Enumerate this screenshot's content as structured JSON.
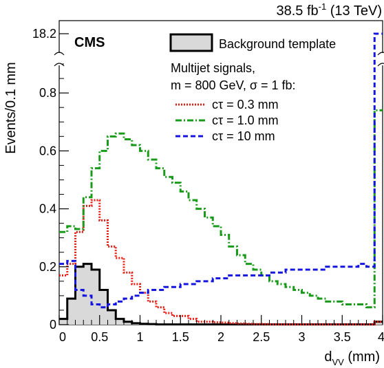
{
  "header": {
    "lumi_value": "38.5 fb",
    "lumi_exp": "-1",
    "lumi_energy": " (13 TeV)",
    "experiment": "CMS"
  },
  "legend": {
    "background": "Background template",
    "heading1": "Multijet signals,",
    "heading2": "m = 800 GeV, σ = 1 fb:",
    "sig1": "cτ = 0.3 mm",
    "sig2": "cτ = 1.0 mm",
    "sig3": "cτ = 10 mm"
  },
  "axes": {
    "ylabel": "Events/0.1 mm",
    "xlabel_main": "d",
    "xlabel_sub": "VV",
    "xlabel_unit": " (mm)"
  },
  "chart_data": {
    "type": "histogram",
    "bin_width": 0.1,
    "xlim": [
      0,
      4
    ],
    "ylim": [
      0,
      0.95
    ],
    "y_break_label": "18.2",
    "x_ticks": [
      "0",
      "0.5",
      "1",
      "1.5",
      "2",
      "2.5",
      "3",
      "3.5",
      "4"
    ],
    "y_ticks": [
      "0",
      "0.2",
      "0.4",
      "0.6",
      "0.8"
    ],
    "colors": {
      "background": "#000000",
      "background_fill": "#d9d9d9",
      "sig_0p3mm": "#e8180f",
      "sig_1mm": "#1a9a1a",
      "sig_10mm": "#1515e0"
    },
    "series": [
      {
        "name": "Background template",
        "style": "solid-filled",
        "values": [
          0.02,
          0.09,
          0.2,
          0.21,
          0.19,
          0.12,
          0.05,
          0.02,
          0.01,
          0.005,
          0.003,
          0.002,
          0.001,
          0.001,
          0.001,
          0.001,
          0.001,
          0.001,
          0.001,
          0.001,
          0.001,
          0.001,
          0.001,
          0.001,
          0.001,
          0.001,
          0.001,
          0.001,
          0.001,
          0.001,
          0.001,
          0.001,
          0.001,
          0.001,
          0.001,
          0.001,
          0.001,
          0.001,
          0.001,
          0.001
        ],
        "last_bin_value": 0.01
      },
      {
        "name": "cτ = 0.3 mm",
        "style": "dotted",
        "values": [
          0.17,
          0.21,
          0.32,
          0.41,
          0.43,
          0.36,
          0.27,
          0.23,
          0.18,
          0.14,
          0.11,
          0.08,
          0.06,
          0.04,
          0.03,
          0.03,
          0.02,
          0.01,
          0.01,
          0.008,
          0.007,
          0.005,
          0.004,
          0.003,
          0.002,
          0.002,
          0.001,
          0.001,
          0.001,
          0.001,
          0.001,
          0.001,
          0.001,
          0.001,
          0.001,
          0.001,
          0.001,
          0.001,
          0.001,
          0.001
        ],
        "last_bin_value": 0.01
      },
      {
        "name": "cτ = 1.0 mm",
        "style": "dash-dot",
        "values": [
          0.32,
          0.34,
          0.33,
          0.44,
          0.54,
          0.6,
          0.65,
          0.66,
          0.64,
          0.62,
          0.6,
          0.57,
          0.54,
          0.51,
          0.49,
          0.46,
          0.43,
          0.4,
          0.37,
          0.34,
          0.31,
          0.27,
          0.24,
          0.21,
          0.19,
          0.17,
          0.15,
          0.14,
          0.13,
          0.12,
          0.11,
          0.1,
          0.09,
          0.08,
          0.08,
          0.07,
          0.07,
          0.07,
          0.06,
          0.07
        ],
        "last_bin_value": 0.74
      },
      {
        "name": "cτ = 10 mm",
        "style": "dashed",
        "values": [
          0.21,
          0.22,
          0.12,
          0.1,
          0.07,
          0.06,
          0.07,
          0.08,
          0.09,
          0.1,
          0.11,
          0.12,
          0.12,
          0.13,
          0.13,
          0.14,
          0.14,
          0.15,
          0.15,
          0.16,
          0.16,
          0.17,
          0.17,
          0.17,
          0.17,
          0.17,
          0.18,
          0.18,
          0.19,
          0.19,
          0.19,
          0.19,
          0.19,
          0.2,
          0.2,
          0.2,
          0.2,
          0.21,
          0.2,
          0.19
        ],
        "last_bin_value": 18.2
      }
    ]
  }
}
